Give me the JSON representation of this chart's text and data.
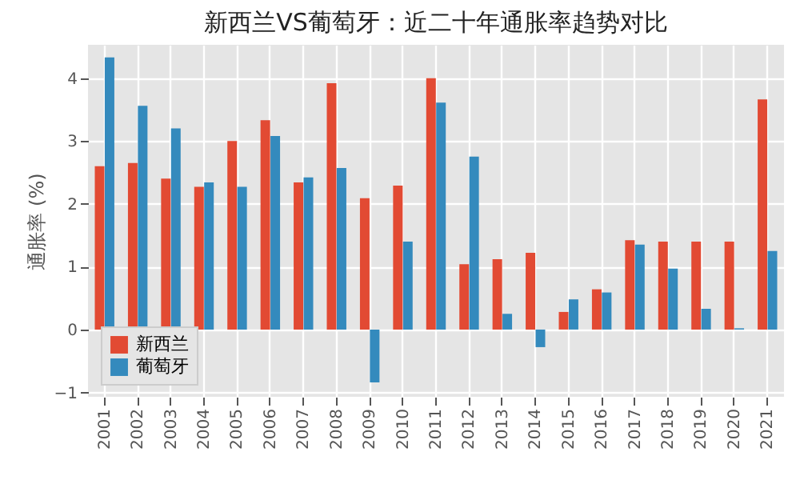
{
  "chart_data": {
    "type": "bar",
    "title": "新西兰VS葡萄牙：近二十年通胀率趋势对比",
    "ylabel": "通胀率 (%)",
    "categories": [
      "2001",
      "2002",
      "2003",
      "2004",
      "2005",
      "2006",
      "2007",
      "2008",
      "2009",
      "2010",
      "2011",
      "2012",
      "2013",
      "2014",
      "2015",
      "2016",
      "2017",
      "2018",
      "2019",
      "2020",
      "2021"
    ],
    "series": [
      {
        "name": "新西兰",
        "color": "#e24a33",
        "values": [
          2.6,
          2.65,
          2.4,
          2.27,
          3.0,
          3.33,
          2.34,
          3.92,
          2.09,
          2.29,
          4.0,
          1.04,
          1.12,
          1.22,
          0.28,
          0.64,
          1.42,
          1.4,
          1.4,
          1.4,
          3.66
        ]
      },
      {
        "name": "葡萄牙",
        "color": "#348abd",
        "values": [
          4.33,
          3.56,
          3.2,
          2.34,
          2.27,
          3.08,
          2.42,
          2.57,
          -0.84,
          1.4,
          3.61,
          2.75,
          0.25,
          -0.28,
          0.48,
          0.59,
          1.35,
          0.97,
          0.33,
          0.02,
          1.25
        ]
      }
    ],
    "ylim": [
      -1.07,
      4.53
    ],
    "yticks": [
      -1,
      0,
      1,
      2,
      3,
      4
    ],
    "grid": true,
    "legend": "bottom left"
  }
}
